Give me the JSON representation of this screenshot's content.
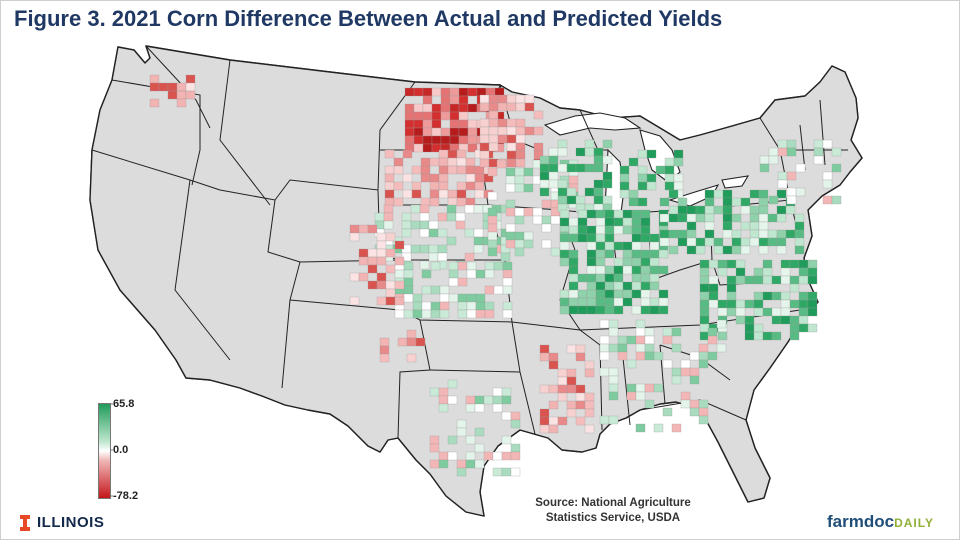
{
  "title": "Figure 3. 2021 Corn Difference Between Actual and Predicted Yields",
  "legend": {
    "max_label": "65.8",
    "mid_label": "0.0",
    "min_label": "-78.2",
    "max_color": "#1f9b5a",
    "mid_color": "#ffffff",
    "min_color": "#c4161c"
  },
  "source": {
    "line1": "Source: National Agriculture",
    "line2": "Statistics Service, USDA"
  },
  "branding": {
    "illinois": "ILLINOIS",
    "farmdoc": "farmdoc",
    "farmdoc_suffix": "DAILY"
  },
  "colors": {
    "land": "#dcdcdc",
    "border": "#222222",
    "strong_green": "#2fa866",
    "light_green": "#a9dcbf",
    "strong_red": "#c62828",
    "light_red": "#f2b3b3"
  },
  "clusters": [
    {
      "region": "North Dakota",
      "tone": "strong_red"
    },
    {
      "region": "South Dakota",
      "tone": "light_red"
    },
    {
      "region": "Nebraska/Kansas",
      "tone": "light_green"
    },
    {
      "region": "Iowa/Minnesota",
      "tone": "light_green"
    },
    {
      "region": "Illinois/Indiana/Ohio",
      "tone": "strong_green"
    },
    {
      "region": "Pennsylvania/Mid-Atlantic",
      "tone": "strong_green"
    },
    {
      "region": "North Carolina",
      "tone": "strong_green"
    },
    {
      "region": "Mississippi Delta",
      "tone": "light_red"
    },
    {
      "region": "Texas",
      "tone": "light_green"
    }
  ]
}
